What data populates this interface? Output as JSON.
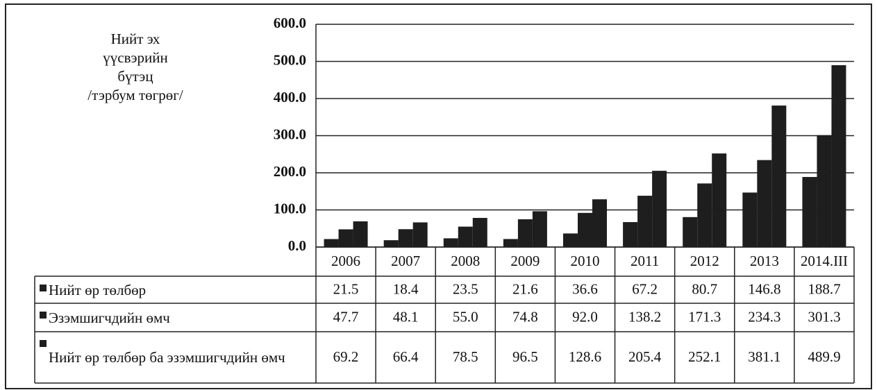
{
  "chart_data": {
    "type": "bar",
    "title": [
      "Нийт эх",
      "үүсвэрийн",
      "бүтэц",
      "/тэрбум төгрөг/"
    ],
    "categories": [
      "2006",
      "2007",
      "2008",
      "2009",
      "2010",
      "2011",
      "2012",
      "2013",
      "2014.III"
    ],
    "series": [
      {
        "name": "Нийт өр төлбөр",
        "color": "#1e1e1e",
        "values": [
          21.5,
          18.4,
          23.5,
          21.6,
          36.6,
          67.2,
          80.7,
          146.8,
          188.7
        ],
        "value_labels": [
          "21.5",
          "18.4",
          "23.5",
          "21.6",
          "36.6",
          "67.2",
          "80.7",
          "146.8",
          "188.7"
        ]
      },
      {
        "name": "Эзэмшигчдийн өмч",
        "color": "#1e1e1e",
        "values": [
          47.7,
          48.1,
          55,
          74.8,
          92,
          138.2,
          171.3,
          234.3,
          301.3
        ],
        "value_labels": [
          "47.7",
          "48.1",
          "55.0",
          "74.8",
          "92.0",
          "138.2",
          "171.3",
          "234.3",
          "301.3"
        ]
      },
      {
        "name": "Нийт өр төлбөр ба эзэмшигчдийн өмч",
        "color": "#1e1e1e",
        "values": [
          69.2,
          66.4,
          78.5,
          96.5,
          128.6,
          205.4,
          252.1,
          381.1,
          489.9
        ],
        "value_labels": [
          "69.2",
          "66.4",
          "78.5",
          "96.5",
          "128.6",
          "205.4",
          "252.1",
          "381.1",
          "489.9"
        ]
      }
    ],
    "ylim": [
      0,
      600
    ],
    "yticks": [
      {
        "value": 0,
        "label": "0.0"
      },
      {
        "value": 100,
        "label": "100.0"
      },
      {
        "value": 200,
        "label": "200.0"
      },
      {
        "value": 300,
        "label": "300.0"
      },
      {
        "value": 400,
        "label": "400.0"
      },
      {
        "value": 500,
        "label": "500.0"
      },
      {
        "value": 600,
        "label": "600.0"
      }
    ],
    "grid": true
  }
}
